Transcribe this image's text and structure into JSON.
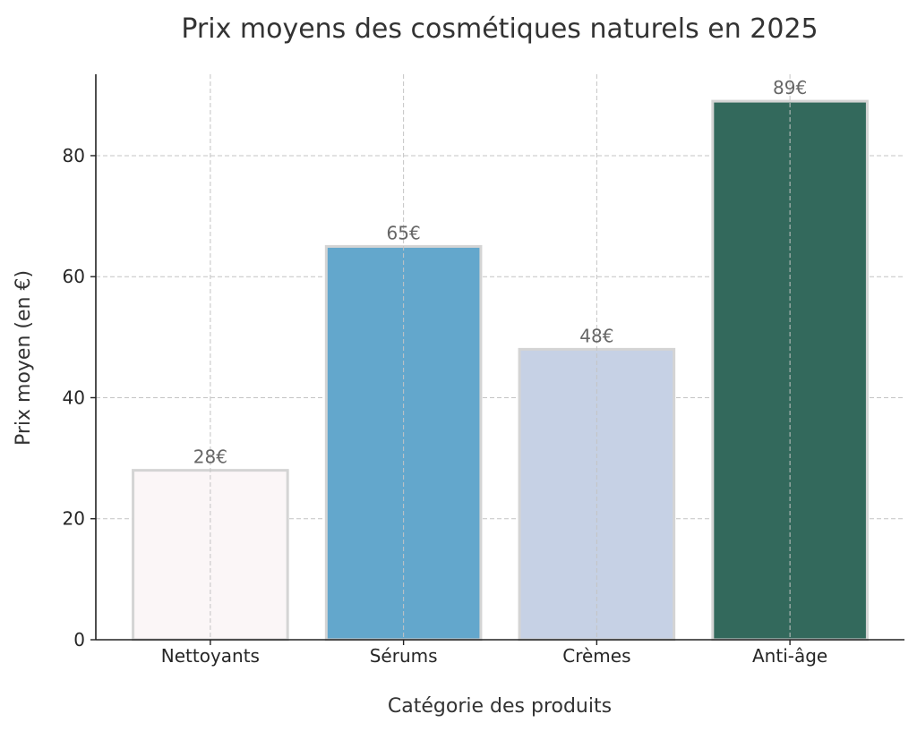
{
  "chart_data": {
    "type": "bar",
    "title": "Prix moyens des cosmétiques naturels en 2025",
    "xlabel": "Catégorie des produits",
    "ylabel": "Prix moyen (en €)",
    "categories": [
      "Nettoyants",
      "Sérums",
      "Crèmes",
      "Anti-âge"
    ],
    "values": [
      28,
      65,
      48,
      89
    ],
    "value_labels": [
      "28€",
      "65€",
      "48€",
      "89€"
    ],
    "colors": [
      "#fbf6f7",
      "#63a7cc",
      "#c6d1e5",
      "#33695c"
    ],
    "ylim": [
      0,
      93.45
    ],
    "yticks": [
      0,
      20,
      40,
      60,
      80
    ],
    "grid": true
  }
}
